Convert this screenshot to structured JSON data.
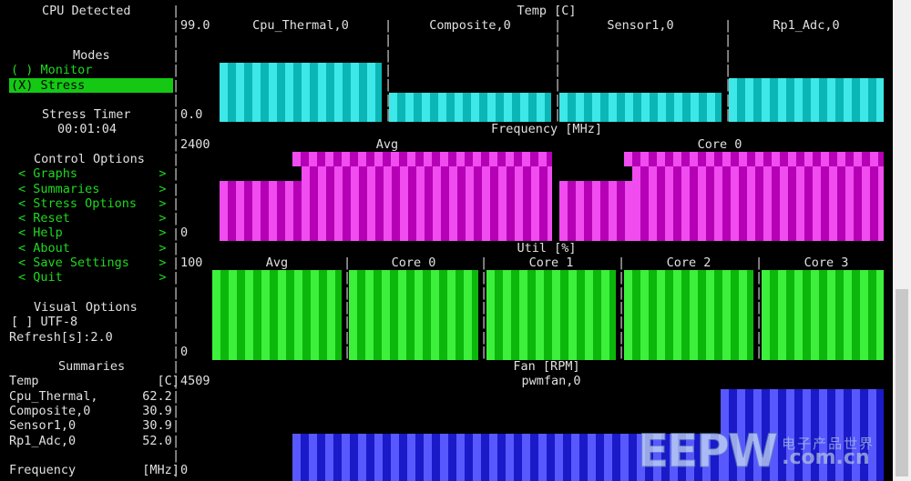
{
  "sidebar": {
    "cpu_detected": "CPU Detected",
    "modes_title": "Modes",
    "mode_monitor": "( ) Monitor",
    "mode_stress": "(X) Stress",
    "stress_timer_title": "Stress Timer",
    "stress_timer_value": "00:01:04",
    "control_title": "Control Options",
    "control_items": [
      "< Graphs           >",
      "< Summaries        >",
      "< Stress Options   >",
      "< Reset            >",
      "< Help             >",
      "< About            >",
      "< Save Settings    >",
      "< Quit             >"
    ],
    "visual_title": "Visual Options",
    "utf8_option": "[ ] UTF-8",
    "refresh": "Refresh[s]:2.0",
    "summaries_title": "Summaries",
    "temp_header": "Temp                [C]",
    "temp_rows": [
      "Cpu_Thermal,      62.2",
      "Composite,0       30.9",
      "Sensor1,0         30.9",
      "Rp1_Adc,0         52.0"
    ],
    "freq_header": "Frequency         [MHz]"
  },
  "graphs": {
    "temp": {
      "title": "Temp [C]",
      "ymax": "99.0",
      "ymin": "0.0",
      "labels": [
        "Cpu_Thermal,0",
        "Composite,0",
        "Sensor1,0",
        "Rp1_Adc,0"
      ],
      "values": [
        62.2,
        30.9,
        30.9,
        52.0
      ],
      "color": "#3ee8e8"
    },
    "freq": {
      "title": "Frequency [MHz]",
      "ymax": "2400",
      "ymin": "0",
      "labels": [
        "Avg",
        "Core 0"
      ],
      "color": "#f04cf0"
    },
    "util": {
      "title": "Util [%]",
      "ymax": "100",
      "ymin": "0",
      "labels": [
        "Avg",
        "Core 0",
        "Core 1",
        "Core 2",
        "Core 3"
      ],
      "values": [
        100,
        100,
        100,
        100,
        100
      ],
      "color": "#3cf03c"
    },
    "fan": {
      "title": "Fan [RPM]",
      "ymax": "4509",
      "ymin": "0",
      "label": "pwmfan,0",
      "color": "#5858ff"
    }
  },
  "watermark": {
    "logo": "EEPW",
    "cn": "电子产品世界",
    "url": ".com.cn"
  }
}
